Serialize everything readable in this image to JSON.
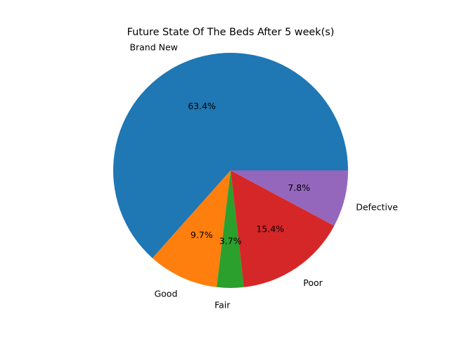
{
  "chart_data": {
    "type": "pie",
    "title": "Future State Of The Beds After 5 week(s)",
    "start_angle": 0,
    "direction": "counterclockwise",
    "slices": [
      {
        "label": "Brand New",
        "value": 63.4,
        "pct_label": "63.4%",
        "color": "#1f77b4"
      },
      {
        "label": "Good",
        "value": 9.7,
        "pct_label": "9.7%",
        "color": "#ff7f0e"
      },
      {
        "label": "Fair",
        "value": 3.7,
        "pct_label": "3.7%",
        "color": "#2ca02c"
      },
      {
        "label": "Poor",
        "value": 15.4,
        "pct_label": "15.4%",
        "color": "#d62728"
      },
      {
        "label": "Defective",
        "value": 7.8,
        "pct_label": "7.8%",
        "color": "#9467bd"
      }
    ]
  }
}
